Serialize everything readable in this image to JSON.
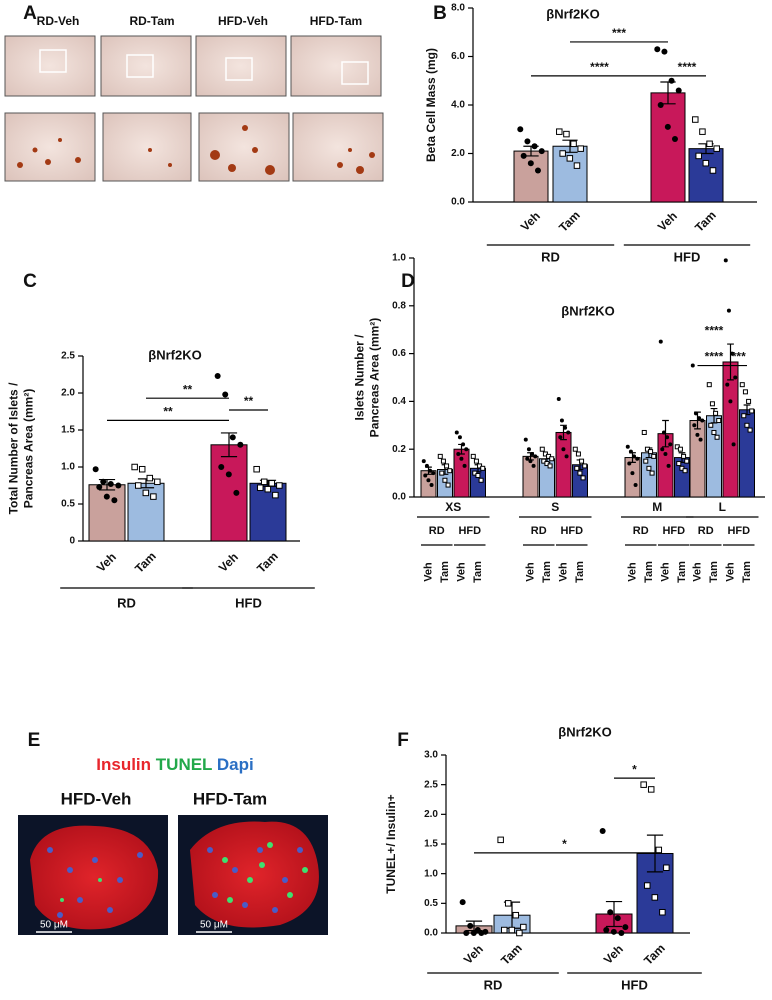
{
  "panel_a": {
    "label": "A",
    "labels": [
      "RD-Veh",
      "RD-Tam",
      "HFD-Veh",
      "HFD-Tam"
    ]
  },
  "panel_e": {
    "label": "E",
    "stains": [
      "Insulin",
      "TUNEL",
      "Dapi"
    ],
    "images": [
      "HFD-Veh",
      "HFD-Tam"
    ],
    "scale_bar": "50 μM"
  },
  "chart_data": [
    {
      "type": "bar",
      "panel": "B",
      "title": "βNrf2KO",
      "ylabel": [
        "Beta Cell Mass (mg)"
      ],
      "categories": [
        "Veh",
        "Tam",
        "Veh",
        "Tam"
      ],
      "group_labels": [
        "RD",
        "HFD"
      ],
      "values": [
        2.1,
        2.3,
        4.5,
        2.2
      ],
      "errors": [
        0.2,
        0.25,
        0.45,
        0.2
      ],
      "points": [
        [
          3.0,
          2.5,
          2.3,
          2.1,
          1.9,
          1.6,
          1.3
        ],
        [
          2.9,
          2.8,
          2.4,
          2.2,
          2.0,
          1.8,
          1.5
        ],
        [
          6.3,
          6.2,
          5.0,
          4.6,
          4.0,
          3.1,
          2.6
        ],
        [
          3.4,
          2.9,
          2.4,
          2.2,
          1.9,
          1.6,
          1.3
        ]
      ],
      "markers": [
        "circle",
        "square",
        "circle",
        "square"
      ],
      "colors": [
        "#c9a19c",
        "#9dbbe0",
        "#c8185a",
        "#2b3a98"
      ],
      "ylim": [
        0,
        8
      ],
      "yticks": [
        {
          "value": 0,
          "label": "0.0"
        },
        {
          "value": 2,
          "label": "2.0"
        },
        {
          "value": 4,
          "label": "4.0"
        },
        {
          "value": 6,
          "label": "6.0"
        },
        {
          "value": 8,
          "label": "8.0"
        }
      ],
      "annotations": [
        "***",
        "****",
        "****"
      ]
    },
    {
      "type": "bar",
      "panel": "C",
      "title": "βNrf2KO",
      "ylabel": [
        "Total Number of Islets /",
        "Pancreas Area (mm²)"
      ],
      "categories": [
        "Veh",
        "Tam",
        "Veh",
        "Tam"
      ],
      "group_labels": [
        "RD",
        "HFD"
      ],
      "values": [
        0.76,
        0.78,
        1.3,
        0.78
      ],
      "errors": [
        0.07,
        0.06,
        0.16,
        0.04
      ],
      "points": [
        [
          0.97,
          0.8,
          0.77,
          0.75,
          0.73,
          0.6,
          0.55
        ],
        [
          1.0,
          0.97,
          0.85,
          0.8,
          0.75,
          0.65,
          0.6
        ],
        [
          2.23,
          1.98,
          1.4,
          1.3,
          1.0,
          0.9,
          0.65
        ],
        [
          0.97,
          0.8,
          0.78,
          0.75,
          0.72,
          0.7,
          0.62
        ]
      ],
      "markers": [
        "circle",
        "square",
        "circle",
        "square"
      ],
      "colors": [
        "#c9a19c",
        "#9dbbe0",
        "#c8185a",
        "#2b3a98"
      ],
      "ylim": [
        0,
        2.5
      ],
      "yticks": [
        0,
        0.5,
        {
          "value": 1,
          "label": "1.0"
        },
        1.5,
        {
          "value": 2,
          "label": "2.0"
        },
        2.5
      ],
      "annotations": [
        "**",
        "**",
        "**"
      ]
    },
    {
      "type": "bar",
      "panel": "D",
      "title": "βNrf2KO",
      "ylabel": [
        "Islets Number  /",
        "Pancreas Area (mm²)"
      ],
      "categories": [
        "Veh",
        "Tam",
        "Veh",
        "Tam",
        "Veh",
        "Tam",
        "Veh",
        "Tam",
        "Veh",
        "Tam",
        "Veh",
        "Tam",
        "Veh",
        "Tam",
        "Veh",
        "Tam"
      ],
      "group_labels": [
        "RD",
        "HFD"
      ],
      "size_labels": [
        "XS",
        "S",
        "M",
        "L"
      ],
      "values": [
        0.11,
        0.115,
        0.2,
        0.12,
        0.17,
        0.16,
        0.27,
        0.135,
        0.165,
        0.185,
        0.265,
        0.165,
        0.32,
        0.34,
        0.565,
        0.365
      ],
      "errors": [
        0.015,
        0.02,
        0.02,
        0.015,
        0.015,
        0.015,
        0.03,
        0.02,
        0.02,
        0.02,
        0.055,
        0.02,
        0.035,
        0.03,
        0.075,
        0.02
      ],
      "points": [
        [
          0.15,
          0.13,
          0.11,
          0.1,
          0.09,
          0.07,
          0.05
        ],
        [
          0.17,
          0.15,
          0.13,
          0.11,
          0.1,
          0.07,
          0.05
        ],
        [
          0.27,
          0.25,
          0.22,
          0.2,
          0.18,
          0.16,
          0.13
        ],
        [
          0.17,
          0.15,
          0.13,
          0.12,
          0.1,
          0.09,
          0.07
        ],
        [
          0.24,
          0.2,
          0.18,
          0.17,
          0.16,
          0.15,
          0.13
        ],
        [
          0.2,
          0.18,
          0.17,
          0.16,
          0.15,
          0.14,
          0.13
        ],
        [
          0.41,
          0.32,
          0.29,
          0.27,
          0.25,
          0.2,
          0.17
        ],
        [
          0.2,
          0.18,
          0.15,
          0.13,
          0.12,
          0.1,
          0.08
        ],
        [
          0.21,
          0.19,
          0.17,
          0.16,
          0.14,
          0.1,
          0.05
        ],
        [
          0.27,
          0.2,
          0.19,
          0.17,
          0.15,
          0.12,
          0.1
        ],
        [
          0.65,
          0.27,
          0.25,
          0.22,
          0.2,
          0.18,
          0.13
        ],
        [
          0.21,
          0.2,
          0.17,
          0.15,
          0.14,
          0.12,
          0.11
        ],
        [
          0.55,
          0.35,
          0.33,
          0.32,
          0.3,
          0.26,
          0.24
        ],
        [
          0.47,
          0.39,
          0.35,
          0.32,
          0.3,
          0.27,
          0.25
        ],
        [
          0.99,
          0.78,
          0.6,
          0.5,
          0.47,
          0.4,
          0.22
        ],
        [
          0.47,
          0.44,
          0.4,
          0.36,
          0.34,
          0.3,
          0.28
        ]
      ],
      "markers": [
        "circle",
        "square",
        "circle",
        "square"
      ],
      "colors": [
        "#c9a19c",
        "#9dbbe0",
        "#c8185a",
        "#2b3a98"
      ],
      "ylim": [
        0,
        1
      ],
      "yticks": [
        {
          "value": 0,
          "label": "0.0"
        },
        0.2,
        0.4,
        0.6,
        0.8,
        {
          "value": 1,
          "label": "1.0"
        }
      ],
      "annotations": [
        "****",
        "****",
        "***"
      ]
    },
    {
      "type": "bar",
      "panel": "F",
      "title": "βNrf2KO",
      "ylabel": [
        "TUNEL+/ Insulin+"
      ],
      "categories": [
        "Veh",
        "Tam",
        "Veh",
        "Tam"
      ],
      "group_labels": [
        "RD",
        "HFD"
      ],
      "values": [
        0.12,
        0.3,
        0.32,
        1.34
      ],
      "errors": [
        0.08,
        0.22,
        0.21,
        0.31
      ],
      "points": [
        [
          0.52,
          0.12,
          0.05,
          0.02,
          0.0,
          0.0,
          0.0
        ],
        [
          1.57,
          0.5,
          0.3,
          0.1,
          0.05,
          0.05,
          0.0
        ],
        [
          1.72,
          0.35,
          0.25,
          0.1,
          0.05,
          0.02,
          0.0
        ],
        [
          2.5,
          2.42,
          1.4,
          1.1,
          0.8,
          0.6,
          0.35
        ]
      ],
      "markers": [
        "circle",
        "square",
        "circle",
        "square"
      ],
      "colors": [
        "#c9a19c",
        "#9dbbe0",
        "#c8185a",
        "#2b3a98"
      ],
      "ylim": [
        0,
        3
      ],
      "yticks": [
        {
          "value": 0,
          "label": "0.0"
        },
        0.5,
        {
          "value": 1,
          "label": "1.0"
        },
        1.5,
        {
          "value": 2,
          "label": "2.0"
        },
        2.5,
        {
          "value": 3,
          "label": "3.0"
        }
      ],
      "annotations": [
        "*",
        "*"
      ]
    }
  ]
}
